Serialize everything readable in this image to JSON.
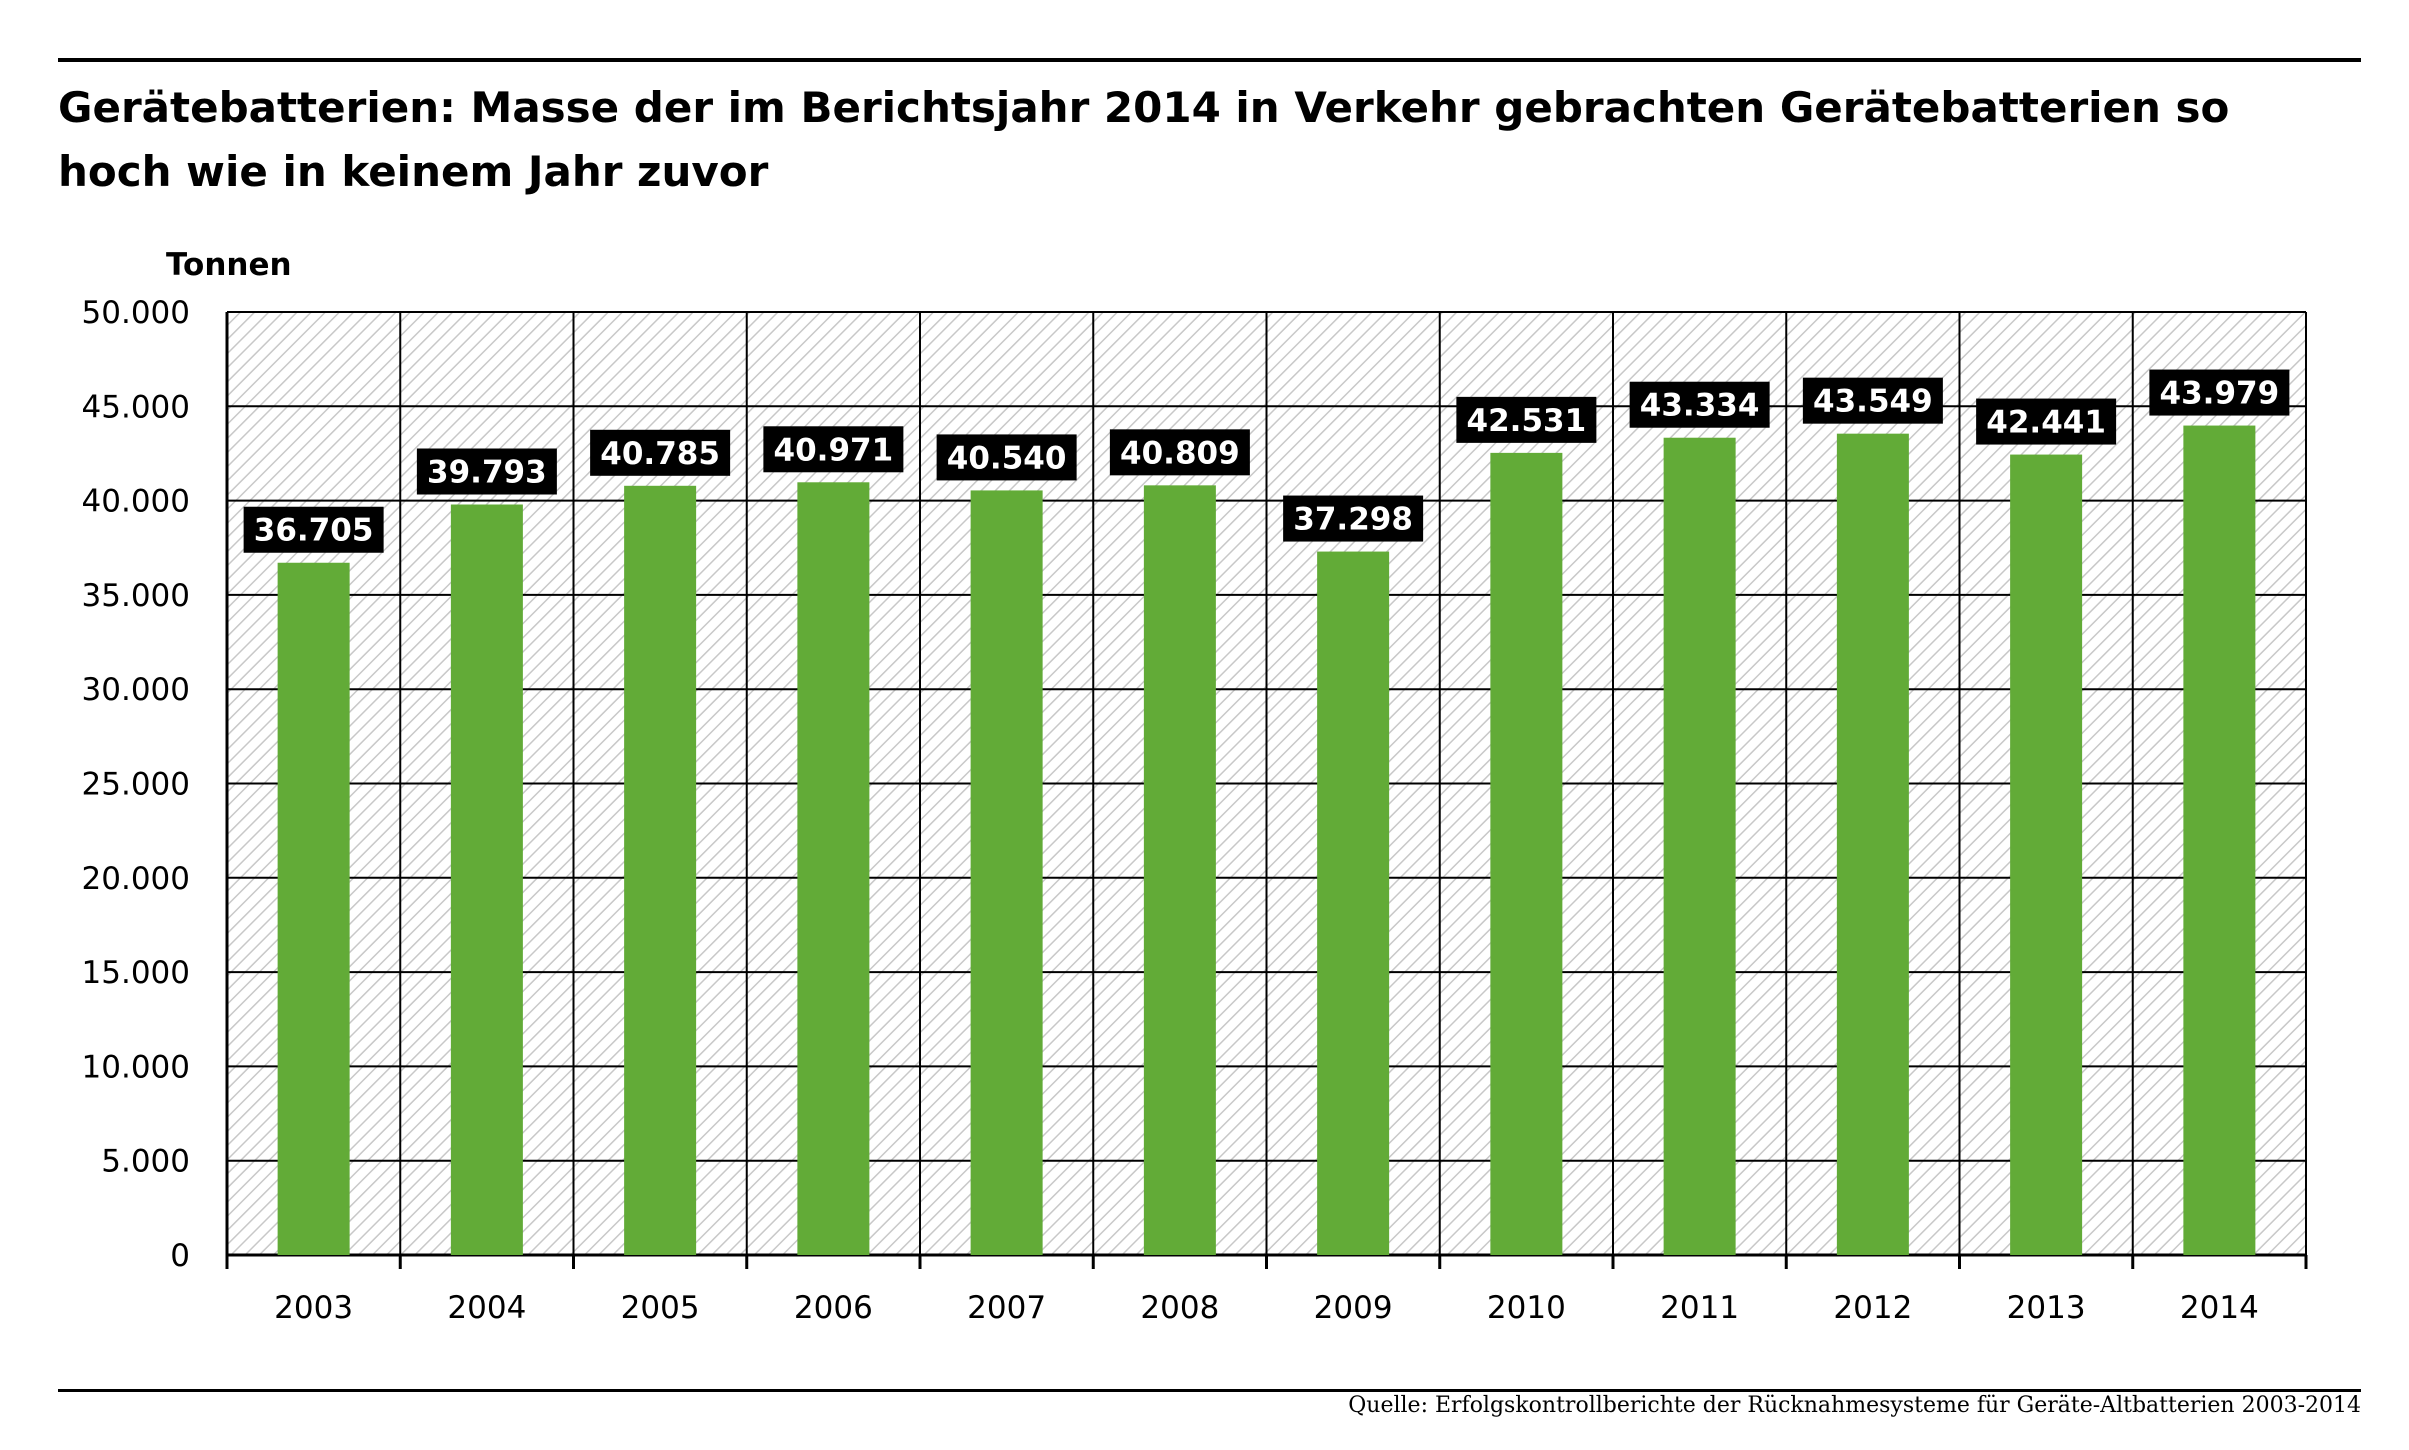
{
  "title": "Gerätebatterien: Masse der im Berichtsjahr 2014 in Verkehr gebrachten Gerätebatterien so hoch wie in keinem Jahr zuvor",
  "source": "Quelle: Erfolgskontrollberichte der Rücknahmesysteme für Geräte-Altbatterien 2003-2014",
  "colors": {
    "bar": "#62ab37",
    "label_bg": "#000000",
    "label_text": "#ffffff",
    "hatch": "#c8c8c8"
  },
  "chart_data": {
    "type": "bar",
    "title": "Gerätebatterien: Masse der im Berichtsjahr 2014 in Verkehr gebrachten Gerätebatterien so hoch wie in keinem Jahr zuvor",
    "ylabel": "Tonnen",
    "xlabel": "",
    "ylim": [
      0,
      50000
    ],
    "yticks": [
      0,
      5000,
      10000,
      15000,
      20000,
      25000,
      30000,
      35000,
      40000,
      45000,
      50000
    ],
    "ytick_labels": [
      "0",
      "5.000",
      "10.000",
      "15.000",
      "20.000",
      "25.000",
      "30.000",
      "35.000",
      "40.000",
      "45.000",
      "50.000"
    ],
    "categories": [
      "2003",
      "2004",
      "2005",
      "2006",
      "2007",
      "2008",
      "2009",
      "2010",
      "2011",
      "2012",
      "2013",
      "2014"
    ],
    "values": [
      36705,
      39793,
      40785,
      40971,
      40540,
      40809,
      37298,
      42531,
      43334,
      43549,
      42441,
      43979
    ],
    "data_labels": [
      "36.705",
      "39.793",
      "40.785",
      "40.971",
      "40.540",
      "40.809",
      "37.298",
      "42.531",
      "43.334",
      "43.549",
      "42.441",
      "43.979"
    ],
    "grid": true,
    "background": "hatched"
  }
}
